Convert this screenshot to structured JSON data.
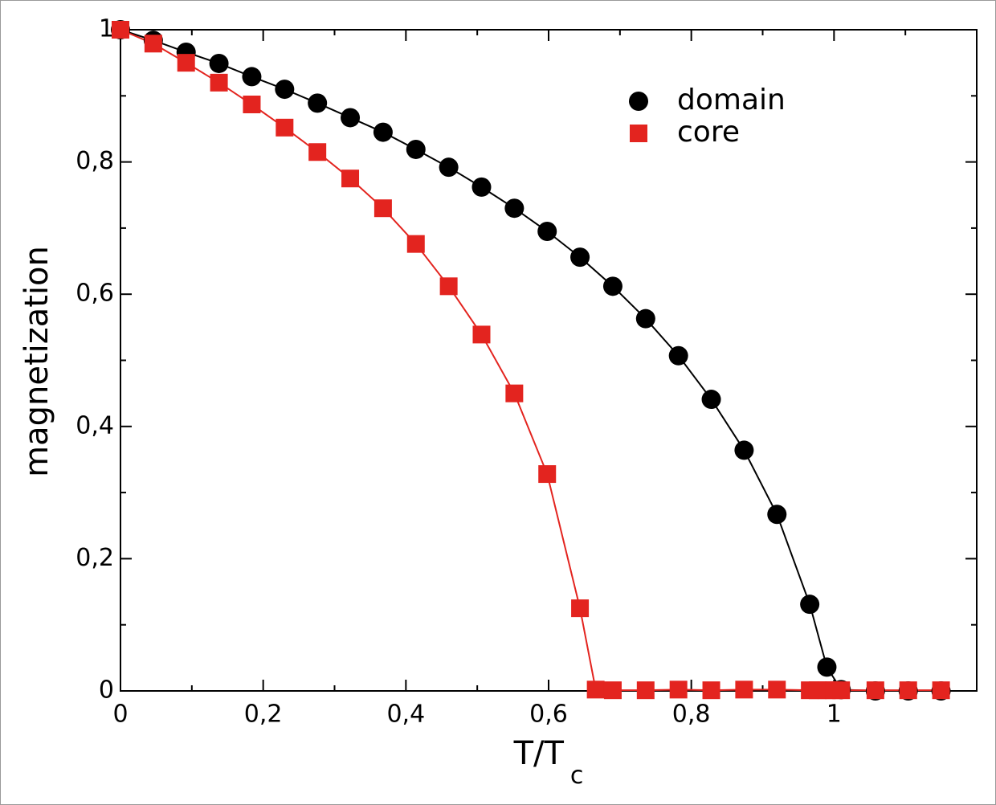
{
  "chart_data": {
    "type": "scatter",
    "xlabel": "T/T",
    "xlabel_sub": "c",
    "ylabel": "magnetization",
    "xlim": [
      0,
      1.2
    ],
    "ylim": [
      0,
      1
    ],
    "xticks": [
      0,
      {
        "value": 0.2,
        "label": "0,2"
      },
      {
        "value": 0.4,
        "label": "0,4"
      },
      {
        "value": 0.6,
        "label": "0,6"
      },
      {
        "value": 0.8,
        "label": "0,8"
      },
      1
    ],
    "yticks": [
      0,
      {
        "value": 0.2,
        "label": "0,2"
      },
      {
        "value": 0.4,
        "label": "0,4"
      },
      {
        "value": 0.6,
        "label": "0,6"
      },
      {
        "value": 0.8,
        "label": "0,8"
      },
      1
    ],
    "xminorticks": [
      0.1,
      0.3,
      0.5,
      0.7,
      0.9,
      1.1
    ],
    "yminorticks": [
      0.1,
      0.3,
      0.5,
      0.7,
      0.9
    ],
    "legend": "upper right",
    "series": [
      {
        "name": "domain",
        "color": "#000000",
        "marker": "circle",
        "x": [
          0,
          0.046,
          0.092,
          0.138,
          0.184,
          0.23,
          0.276,
          0.322,
          0.368,
          0.414,
          0.46,
          0.506,
          0.552,
          0.598,
          0.644,
          0.69,
          0.736,
          0.782,
          0.828,
          0.874,
          0.92,
          0.966,
          0.99,
          1.01,
          1.058,
          1.104,
          1.15
        ],
        "values": [
          1,
          0.984,
          0.966,
          0.949,
          0.929,
          0.91,
          0.889,
          0.867,
          0.845,
          0.819,
          0.792,
          0.762,
          0.73,
          0.695,
          0.656,
          0.612,
          0.563,
          0.507,
          0.441,
          0.364,
          0.267,
          0.131,
          0.036,
          0.002,
          0,
          0,
          0
        ]
      },
      {
        "name": "core",
        "color": "#e3241f",
        "marker": "square",
        "x": [
          0,
          0.046,
          0.092,
          0.138,
          0.184,
          0.23,
          0.276,
          0.322,
          0.368,
          0.414,
          0.46,
          0.506,
          0.552,
          0.598,
          0.644,
          0.666,
          0.69,
          0.736,
          0.782,
          0.828,
          0.874,
          0.92,
          0.966,
          0.977,
          0.99,
          1.0,
          1.01,
          1.058,
          1.104,
          1.15
        ],
        "values": [
          1,
          0.979,
          0.95,
          0.92,
          0.887,
          0.852,
          0.815,
          0.775,
          0.73,
          0.676,
          0.612,
          0.539,
          0.45,
          0.328,
          0.125,
          0.002,
          0.001,
          0.001,
          0.002,
          0.001,
          0.002,
          0.002,
          0.001,
          0.001,
          0.001,
          0.001,
          0.001,
          0.001,
          0.001,
          0.001
        ]
      }
    ]
  }
}
